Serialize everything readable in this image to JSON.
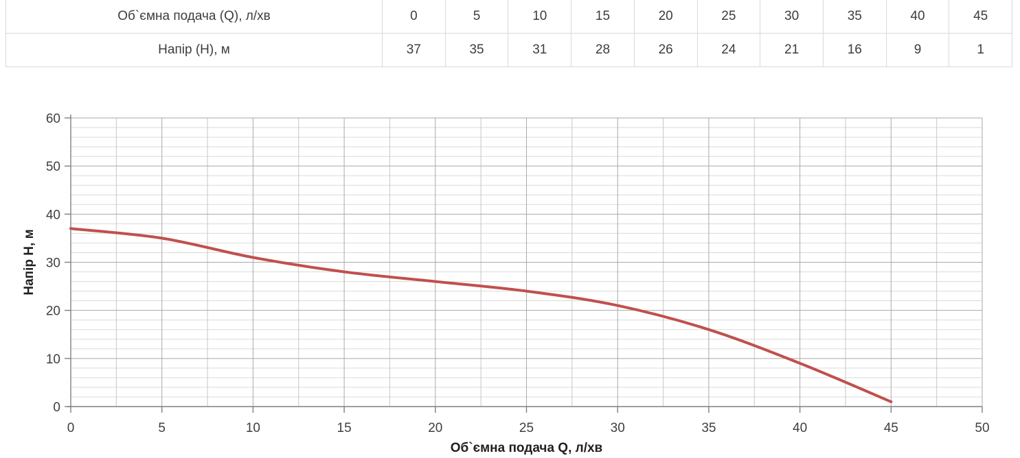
{
  "table": {
    "rows": [
      {
        "label": "Об`ємна  подача (Q), л/хв",
        "values": [
          "0",
          "5",
          "10",
          "15",
          "20",
          "25",
          "30",
          "35",
          "40",
          "45"
        ]
      },
      {
        "label": "Напір (Н), м",
        "values": [
          "37",
          "35",
          "31",
          "28",
          "26",
          "24",
          "21",
          "16",
          "9",
          "1"
        ]
      }
    ]
  },
  "chart_data": {
    "type": "line",
    "title": "",
    "x": [
      0,
      5,
      10,
      15,
      20,
      25,
      30,
      35,
      40,
      45
    ],
    "y": [
      37,
      35,
      31,
      28,
      26,
      24,
      21,
      16,
      9,
      1
    ],
    "series": [
      {
        "name": "Напір (Н), м",
        "x": [
          0,
          5,
          10,
          15,
          20,
          25,
          30,
          35,
          40,
          45
        ],
        "y": [
          37,
          35,
          31,
          28,
          26,
          24,
          21,
          16,
          9,
          1
        ]
      }
    ],
    "xlabel": "Об`ємна подача Q, л/хв",
    "ylabel": "Напір Н, м",
    "xlim": [
      0,
      50
    ],
    "ylim": [
      0,
      60
    ],
    "x_ticks": [
      0,
      5,
      10,
      15,
      20,
      25,
      30,
      35,
      40,
      45,
      50
    ],
    "y_ticks": [
      0,
      10,
      20,
      30,
      40,
      50,
      60
    ],
    "x_major_step": 5,
    "x_minor_step": 2.5,
    "y_major_step": 10,
    "y_minor_step": 2,
    "grid": "major+minor",
    "legend": "none",
    "smooth": true,
    "line_color": "#c0504d",
    "line_width": 4,
    "axis_color": "#7f7f7f",
    "major_grid_color": "#a9a9a9",
    "minor_grid_color_h": "#dadada",
    "minor_grid_color_v": "#c7c7c7",
    "tick_label_color": "#3f3f3f",
    "axis_title_color": "#1f1f1f"
  }
}
